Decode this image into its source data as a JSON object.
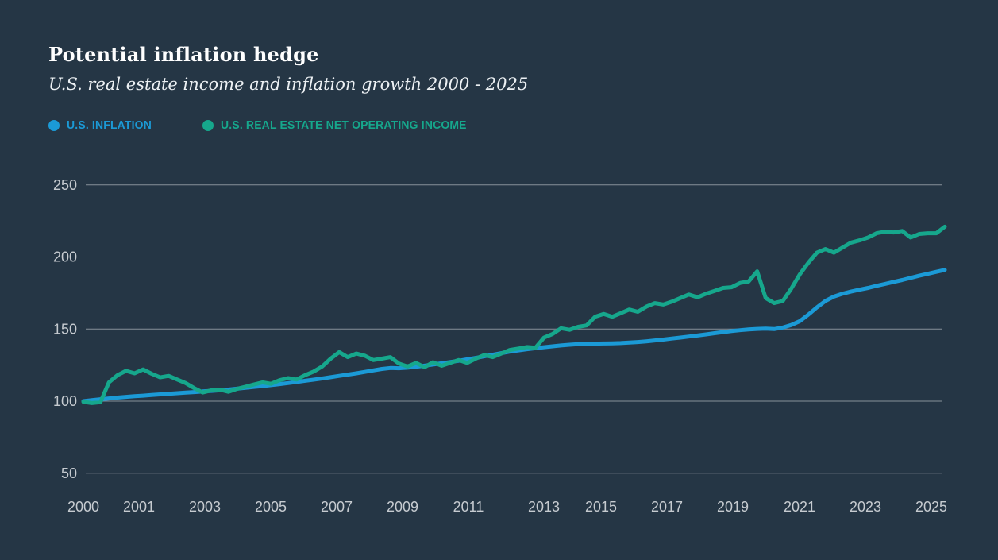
{
  "page": {
    "background": "#253645"
  },
  "header": {
    "title": "Potential inflation hedge",
    "subtitle": "U.S. real estate income and inflation growth 2000 - 2025"
  },
  "legend": {
    "items": [
      {
        "label": "U.S. INFLATION",
        "color": "#1b9ad6"
      },
      {
        "label": "U.S. REAL ESTATE NET OPERATING INCOME",
        "color": "#16a78c"
      }
    ]
  },
  "colors": {
    "background": "#253645",
    "grid": "#99a1a8",
    "axis_text": "#c6cbd0",
    "inflation_line": "#1b9ad6",
    "noi_line": "#16a78c"
  },
  "chart_data": {
    "type": "line",
    "title": "Potential inflation hedge",
    "subtitle": "U.S. real estate income and inflation growth 2000 - 2025",
    "grid": true,
    "legend_position": "top-left",
    "x_axis": {
      "start_year": 2000,
      "end_year": 2025.25,
      "frequency": "quarterly",
      "tick_labels": [
        "2000",
        "2001",
        "2003",
        "2005",
        "2007",
        "2009",
        "2011",
        "2013",
        "2015",
        "2017",
        "2019",
        "2021",
        "2023",
        "2025"
      ]
    },
    "y_axis": {
      "ticks": [
        250,
        200,
        150,
        100,
        50
      ],
      "index_base": 100,
      "range": [
        50,
        250
      ]
    },
    "series": [
      {
        "name": "U.S. Inflation",
        "color": "#1b9ad6",
        "values": [
          100.0,
          100.7,
          101.3,
          101.9,
          102.5,
          103.0,
          103.4,
          103.8,
          104.3,
          104.7,
          105.1,
          105.5,
          105.9,
          106.3,
          106.7,
          107.1,
          107.5,
          108.0,
          108.6,
          109.2,
          109.8,
          110.4,
          111.1,
          111.8,
          112.5,
          113.3,
          114.1,
          114.9,
          115.7,
          116.6,
          117.5,
          118.4,
          119.3,
          120.3,
          121.3,
          122.3,
          123.0,
          122.8,
          123.2,
          123.8,
          124.6,
          125.4,
          126.2,
          127.1,
          128.0,
          129.0,
          130.0,
          131.1,
          132.2,
          133.3,
          134.3,
          135.2,
          136.0,
          136.7,
          137.4,
          138.0,
          138.6,
          139.1,
          139.5,
          139.8,
          139.9,
          140.0,
          140.1,
          140.3,
          140.6,
          141.0,
          141.5,
          142.1,
          142.7,
          143.4,
          144.1,
          144.8,
          145.5,
          146.3,
          147.1,
          147.9,
          148.6,
          149.2,
          149.7,
          150.1,
          150.3,
          150.0,
          151.0,
          152.8,
          155.5,
          160.0,
          165.0,
          169.5,
          172.5,
          174.5,
          176.0,
          177.3,
          178.5,
          180.0,
          181.3,
          182.7,
          184.0,
          185.5,
          187.0,
          188.3,
          189.7,
          191.0
        ]
      },
      {
        "name": "U.S. Real Estate Net Operating Income",
        "color": "#16a78c",
        "values": [
          99.5,
          98.7,
          99.3,
          113.0,
          118.0,
          121.0,
          119.3,
          122.0,
          119.0,
          116.5,
          117.5,
          115.0,
          112.5,
          109.0,
          106.0,
          107.5,
          108.0,
          106.5,
          108.5,
          110.0,
          111.5,
          113.0,
          112.0,
          114.5,
          116.0,
          115.0,
          118.0,
          120.5,
          124.0,
          129.5,
          134.0,
          130.5,
          133.0,
          131.5,
          128.5,
          129.5,
          130.5,
          126.0,
          124.0,
          126.5,
          123.5,
          127.0,
          124.5,
          126.5,
          128.5,
          126.5,
          129.5,
          132.0,
          130.5,
          133.0,
          135.5,
          136.5,
          137.5,
          137.0,
          144.0,
          146.5,
          150.5,
          149.5,
          151.5,
          152.5,
          158.5,
          160.5,
          158.5,
          161.0,
          163.5,
          162.0,
          165.5,
          168.0,
          167.0,
          169.0,
          171.5,
          174.0,
          172.0,
          174.5,
          176.5,
          178.5,
          179.0,
          182.0,
          183.0,
          190.0,
          171.5,
          168.0,
          169.5,
          178.0,
          188.0,
          196.0,
          203.0,
          205.5,
          203.0,
          206.5,
          210.0,
          211.5,
          213.5,
          216.5,
          217.5,
          217.0,
          218.0,
          213.5,
          216.0,
          216.5,
          216.5,
          221.0
        ]
      }
    ]
  }
}
